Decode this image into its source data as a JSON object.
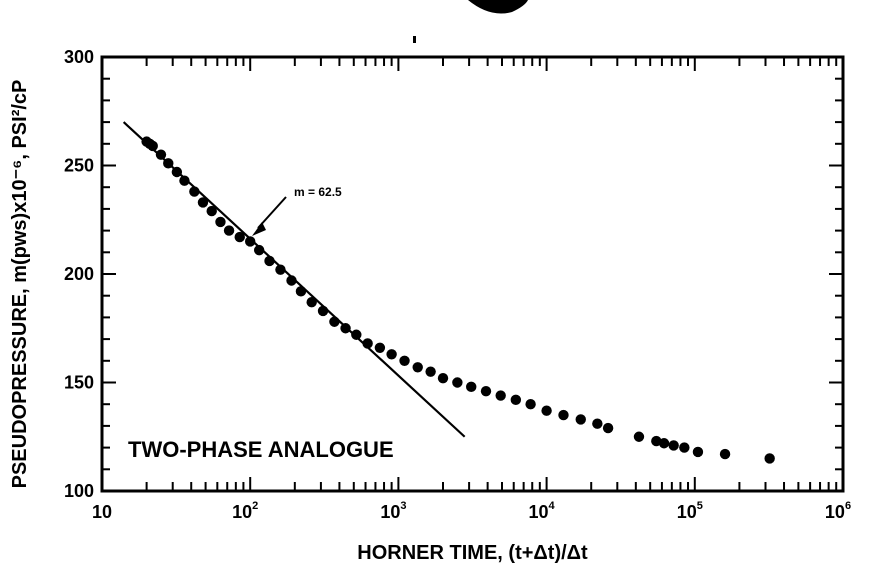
{
  "chart_data": {
    "type": "scatter",
    "title": "",
    "xlabel": "HORNER TIME, (t+Δt)/Δt",
    "ylabel": "PSEUDOPRESSURE, m(pws)x10⁻⁶, PSI²/cP",
    "x_scale": "log",
    "xlim": [
      10,
      1000000
    ],
    "ylim": [
      100,
      300
    ],
    "x_ticks": [
      {
        "base": "10",
        "exp": ""
      },
      {
        "base": "10",
        "exp": "2"
      },
      {
        "base": "10",
        "exp": "3"
      },
      {
        "base": "10",
        "exp": "4"
      },
      {
        "base": "10",
        "exp": "5"
      },
      {
        "base": "10",
        "exp": "6"
      }
    ],
    "y_ticks": [
      "100",
      "150",
      "200",
      "250",
      "300"
    ],
    "grid": false,
    "series": [
      {
        "x": [
          20,
          21,
          22,
          25,
          28,
          32,
          36,
          42,
          48,
          55,
          63,
          72,
          85,
          100,
          115,
          135,
          160,
          190,
          220,
          260,
          310,
          370,
          440,
          520,
          620,
          750,
          900,
          1100,
          1350,
          1650,
          2000,
          2500,
          3100,
          3900,
          4900,
          6200,
          7800,
          10000,
          13000,
          17000,
          22000,
          26000,
          42000,
          55000,
          62000,
          72000,
          85000,
          105000,
          160000,
          320000
        ],
        "y": [
          261,
          260,
          259,
          255,
          251,
          247,
          243,
          238,
          233,
          229,
          224,
          220,
          217,
          215,
          211,
          206,
          202,
          197,
          192,
          187,
          183,
          178,
          175,
          172,
          168,
          166,
          163,
          160,
          157,
          155,
          152,
          150,
          148,
          146,
          144,
          142,
          140,
          137,
          135,
          133,
          131,
          129,
          125,
          123,
          122,
          121,
          120,
          118,
          117,
          115
        ]
      }
    ],
    "trend_line": {
      "slope_label": "m = 62.5",
      "x": [
        14,
        2800
      ],
      "y": [
        270,
        125
      ]
    },
    "annotations": [
      "m = 62.5",
      "TWO-PHASE ANALOGUE"
    ]
  }
}
